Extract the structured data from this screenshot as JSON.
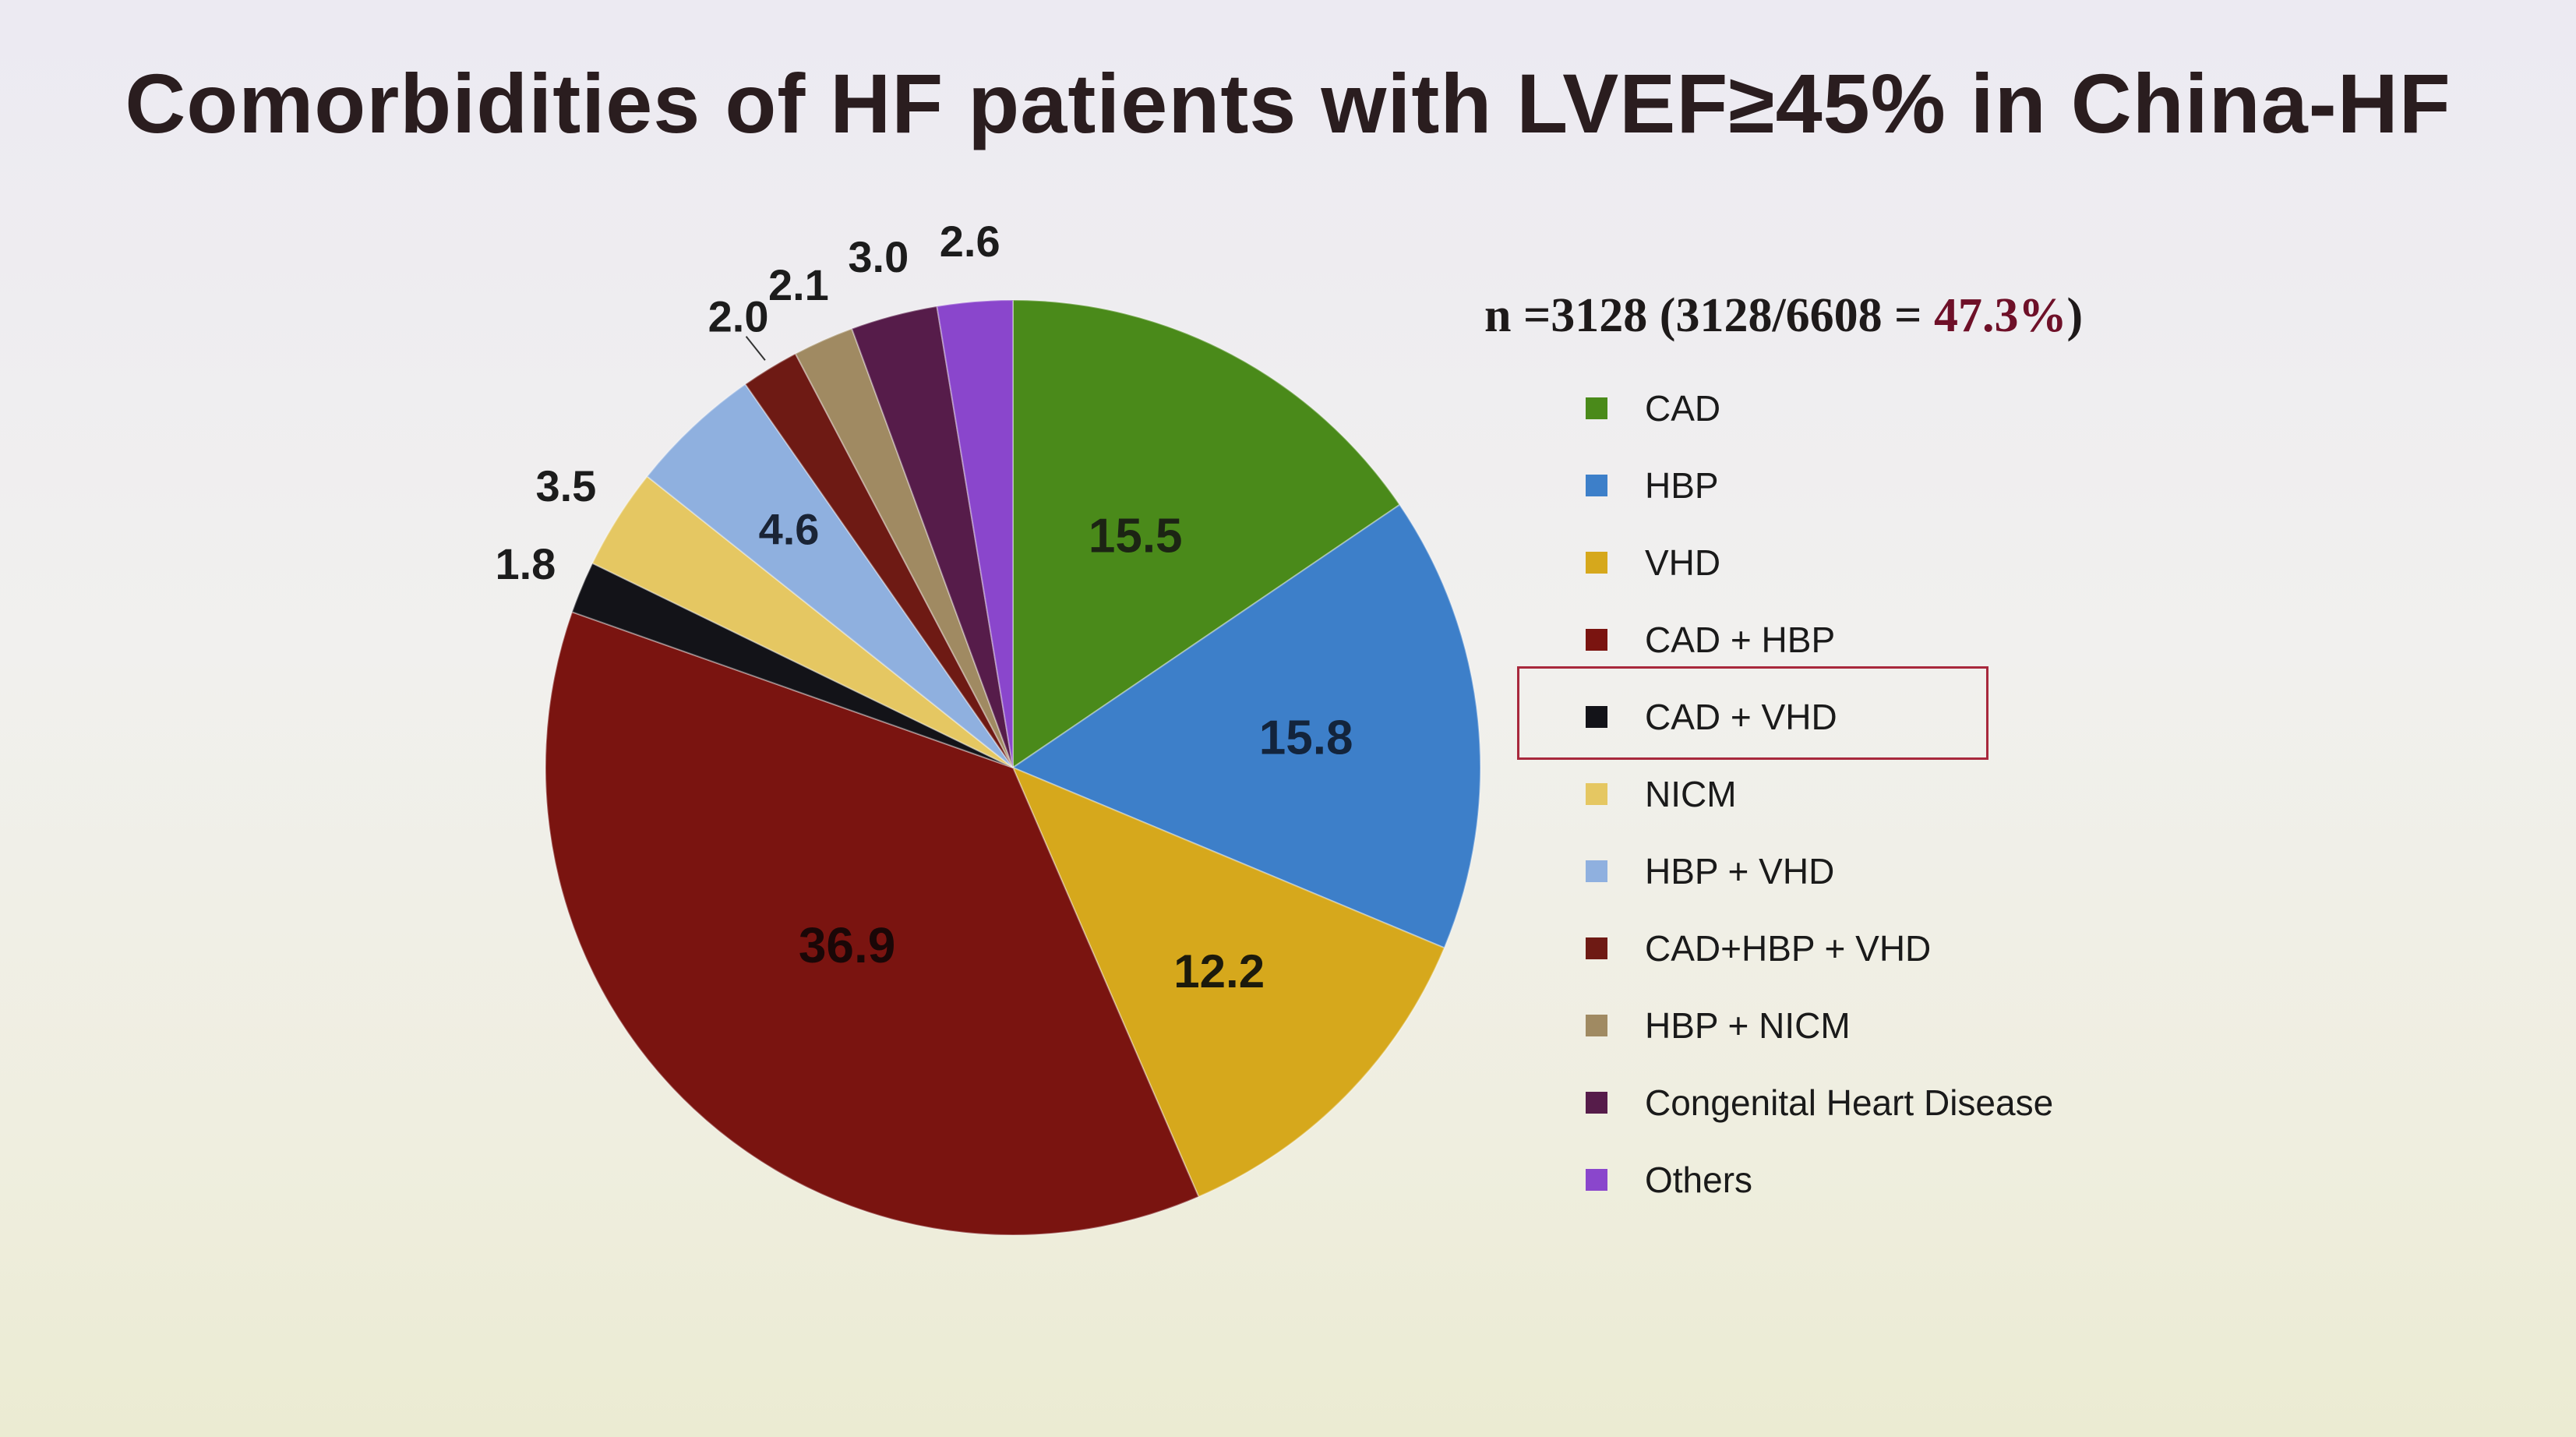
{
  "slide": {
    "title": "Comorbidities of HF patients with LVEF≥45% in China-HF"
  },
  "chart_data": {
    "type": "pie",
    "title": "Comorbidities of HF patients with LVEF≥45% in China-HF",
    "subtitle_prefix": "n =3128 (3128/6608 = ",
    "subtitle_pct": "47.3%",
    "subtitle_suffix": ")",
    "legend_position": "right",
    "slices": [
      {
        "label": "CAD",
        "value": 15.5,
        "color": "#4a8a1a",
        "value_label": "15.5"
      },
      {
        "label": "HBP",
        "value": 15.8,
        "color": "#3d7fc9",
        "value_label": "15.8"
      },
      {
        "label": "VHD",
        "value": 12.2,
        "color": "#d6a81c",
        "value_label": "12.2"
      },
      {
        "label": "CAD + HBP",
        "value": 36.9,
        "color": "#7a1410",
        "value_label": "36.9"
      },
      {
        "label": "CAD + VHD",
        "value": 1.8,
        "color": "#131318",
        "value_label": "1.8"
      },
      {
        "label": "NICM",
        "value": 3.5,
        "color": "#e5c762",
        "value_label": "3.5"
      },
      {
        "label": "HBP + VHD",
        "value": 4.6,
        "color": "#8fb0df",
        "value_label": "4.6"
      },
      {
        "label": "CAD+HBP + VHD",
        "value": 2.0,
        "color": "#6e1a14",
        "value_label": "2.0"
      },
      {
        "label": "HBP + NICM",
        "value": 2.1,
        "color": "#a08a62",
        "value_label": "2.1"
      },
      {
        "label": "Congenital Heart Disease",
        "value": 3.0,
        "color": "#561c4a",
        "value_label": "3.0"
      },
      {
        "label": "Others",
        "value": 2.6,
        "color": "#8a46cc",
        "value_label": "2.6"
      }
    ],
    "highlighted_legend_entry": "CAD + VHD"
  }
}
